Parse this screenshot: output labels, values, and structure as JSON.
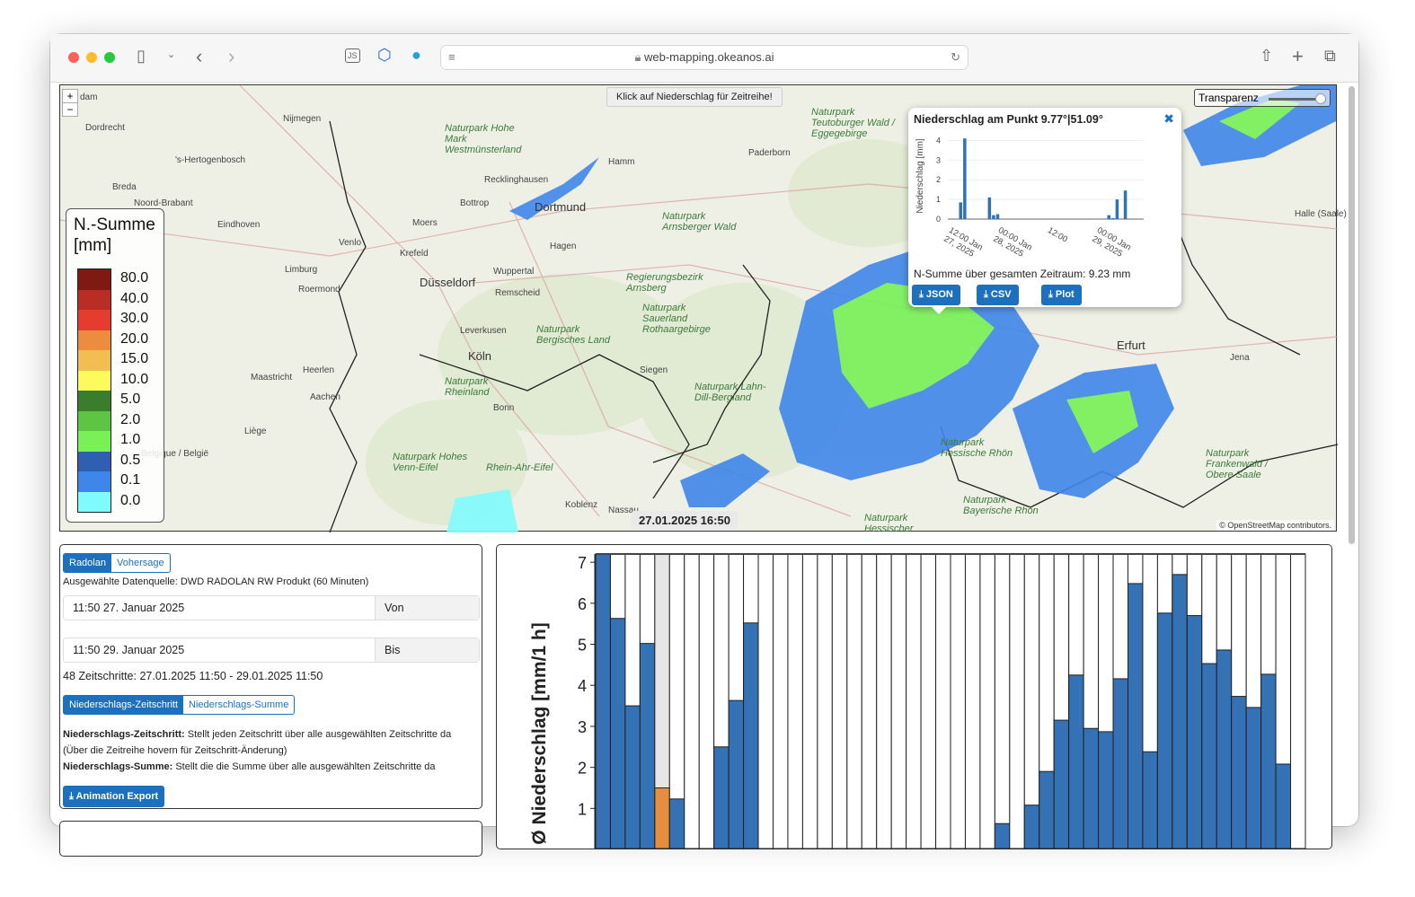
{
  "browser": {
    "url": "web-mapping.okeanos.ai"
  },
  "map": {
    "hint": "Klick auf Niederschlag für Zeitreihe!",
    "transparency_label": "Transparenz",
    "transparency_value": 0.9,
    "timestamp": "27.01.2025 16:50",
    "attribution": "© OpenStreetMap contributors.",
    "zoom_in": "+",
    "zoom_out": "−",
    "labels": [
      "dam",
      "Dordrecht",
      "Nijmegen",
      "'s-Hertogenbosch",
      "Breda",
      "Noord-Brabant",
      "Eindhoven",
      "Venlo",
      "Limburg",
      "Roermond",
      "Maastricht",
      "Heerlen",
      "Aachen",
      "Liège",
      "Belgique / België",
      "Krefeld",
      "Moers",
      "Düsseldorf",
      "Wuppertal",
      "Remscheid",
      "Leverkusen",
      "Köln",
      "Bonn",
      "Koblenz",
      "Bottrop",
      "Recklinghausen",
      "Dortmund",
      "Hagen",
      "Hamm",
      "Paderborn",
      "Siegen",
      "Erfurt",
      "Jena",
      "Halle (Saale)",
      "Naturpark Hohe Mark Westmünsterland",
      "Naturpark Arnsberger Wald",
      "Regierungsbezirk Arnsberg",
      "Naturpark Sauerland Rothaargebirge",
      "Naturpark Bergisches Land",
      "Naturpark Rheinland",
      "Naturpark Lahn-Dill-Bergland",
      "Naturpark Hohes Venn-Eifel",
      "Rhein-Ahr-Eifel",
      "Naturpark Teutoburger Wald / Eggegebirge",
      "Naturpark Hessische Rhön",
      "Naturpark Bayerische Rhön",
      "Naturpark Frankenwald / Obere Saale",
      "Nassau",
      "Naturpark Hessischer"
    ],
    "legend": {
      "title": "N.-Summe [mm]",
      "items": [
        {
          "label": "80.0",
          "color": "#7f1a13"
        },
        {
          "label": "40.0",
          "color": "#b92d25"
        },
        {
          "label": "30.0",
          "color": "#e63b2f"
        },
        {
          "label": "20.0",
          "color": "#ec8c3f"
        },
        {
          "label": "15.0",
          "color": "#f2be52"
        },
        {
          "label": "10.0",
          "color": "#fcfa5c"
        },
        {
          "label": "5.0",
          "color": "#3a7d2c"
        },
        {
          "label": "2.0",
          "color": "#5ec544"
        },
        {
          "label": "1.0",
          "color": "#78f056"
        },
        {
          "label": "0.5",
          "color": "#2f5fb0"
        },
        {
          "label": "0.1",
          "color": "#3f86ea"
        },
        {
          "label": "0.0",
          "color": "#7ffbfd"
        }
      ]
    },
    "popup": {
      "title": "Niederschlag am Punkt 9.77°|51.09°",
      "sum_text": "N-Summe über gesamten Zeitraum: 9.23 mm",
      "buttons": [
        "JSON",
        "CSV",
        "Plot"
      ],
      "chart_data": {
        "type": "bar",
        "ylabel": "Niederschlag [mm]",
        "ylim": [
          0,
          4.2
        ],
        "yticks": [
          0,
          1,
          2,
          3,
          4
        ],
        "xticks": [
          "12:00 Jan 27, 2025",
          "00:00 Jan 28, 2025",
          "12:00",
          "00:00 Jan 29, 2025"
        ],
        "xtick_labels": [
          [
            "12:00",
            "Jan 27, ..."
          ],
          [
            "00:00",
            "Jan 28, ..."
          ],
          [
            "12:00",
            ""
          ],
          [
            "00:00",
            "Jan 29, ..."
          ]
        ],
        "x": [
          "2025-01-27 12:00",
          "2025-01-27 13:00",
          "2025-01-27 19:00",
          "2025-01-27 20:00",
          "2025-01-27 21:00",
          "2025-01-29 00:00",
          "2025-01-29 01:00",
          "2025-01-29 02:00",
          "2025-01-29 04:00"
        ],
        "values": [
          0.85,
          4.1,
          1.1,
          0.2,
          0.25,
          0.2,
          0.05,
          1.0,
          1.45
        ],
        "color": "#2f72b8"
      }
    }
  },
  "controls": {
    "source_tabs": [
      {
        "label": "Radolan",
        "active": true
      },
      {
        "label": "Vohersage",
        "active": false
      }
    ],
    "source_text": "Ausgewählte Datenquelle: DWD RADOLAN RW Produkt (60 Minuten)",
    "from": {
      "value": "11:50  27. Januar 2025",
      "addon": "Von"
    },
    "to": {
      "value": "11:50  29. Januar 2025",
      "addon": "Bis"
    },
    "steps_text": "48 Zeitschritte: 27.01.2025 11:50 - 29.01.2025 11:50",
    "mode_tabs": [
      {
        "label": "Niederschlags-Zeitschritt",
        "active": true
      },
      {
        "label": "Niederschlags-Summe",
        "active": false
      }
    ],
    "desc1_bold": "Niederschlags-Zeitschritt:",
    "desc1": " Stellt jeden Zeitschritt über alle ausgewählten Zeitschritte da",
    "desc1b": "(Über die Zeitreihe hovern für Zeitschritt-Änderung)",
    "desc2_bold": "Niederschlags-Summe:",
    "desc2": " Stellt die die Summe über alle ausgewählten Zeitschritte da",
    "export_label": "Animation Export"
  },
  "chart_data": {
    "type": "bar",
    "ylabel": "Ø Niederschlag [mm/1 h]",
    "ylim": [
      0,
      7.2
    ],
    "yticks": [
      1,
      2,
      3,
      4,
      5,
      6,
      7
    ],
    "values": [
      7.2,
      5.63,
      3.5,
      5.02,
      1.5,
      1.23,
      0,
      0,
      2.5,
      3.63,
      5.52,
      0,
      0,
      0,
      0,
      0,
      0,
      0,
      0,
      0,
      0,
      0,
      0,
      0,
      0,
      0,
      0,
      0.63,
      0,
      1.08,
      1.9,
      3.15,
      4.25,
      2.95,
      2.87,
      4.16,
      6.48,
      2.38,
      5.76,
      6.7,
      5.7,
      4.53,
      4.86,
      3.73,
      3.46,
      4.27,
      2.08,
      0
    ],
    "highlight_index": 4,
    "bar_color": "#3471b5",
    "highlight_color": "#e58f3e",
    "highlight_bg": "#e6e6e6"
  }
}
